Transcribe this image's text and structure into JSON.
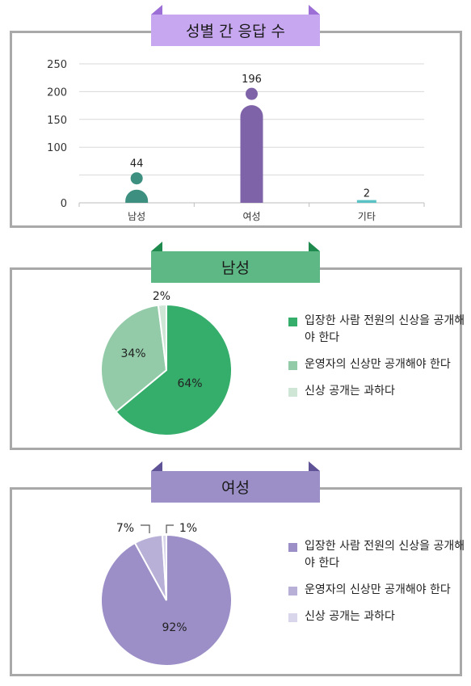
{
  "colors": {
    "banner_bar": "#c7a7ef",
    "banner_bar_dark": "#9b6fd6",
    "banner_male": "#5eb885",
    "banner_male_dark": "#1f8a4d",
    "banner_female": "#9c8fc7",
    "banner_female_dark": "#5f5296",
    "bar_male": "#3d8f80",
    "bar_female": "#7f63a8",
    "bar_other": "#58c2c4",
    "male_slices": [
      "#35ad6b",
      "#93cba8",
      "#cfe6d6"
    ],
    "female_slices": [
      "#9c8fc7",
      "#b9b0d8",
      "#d9d5ea"
    ]
  },
  "titles": {
    "bar": "성별 간 응답 수",
    "male": "남성",
    "female": "여성"
  },
  "legend": [
    "입장한 사람 전원의 신상을 공개해야 한다",
    "운영자의 신상만 공개해야 한다",
    "신상 공개는 과하다"
  ],
  "chart_data": [
    {
      "type": "bar",
      "title": "성별 간 응답 수",
      "categories": [
        "남성",
        "여성",
        "기타"
      ],
      "values": [
        44,
        196,
        2
      ],
      "data_labels": [
        "44",
        "196",
        "2"
      ],
      "ylim": [
        0,
        250
      ],
      "yticks": [
        0,
        50,
        100,
        150,
        200,
        250
      ],
      "ytick_labels": [
        "0",
        "",
        "100",
        "150",
        "200",
        "250"
      ],
      "grid": true
    },
    {
      "type": "pie",
      "title": "남성",
      "labels": [
        "입장한 사람 전원의 신상을 공개해야 한다",
        "운영자의 신상만 공개해야 한다",
        "신상 공개는 과하다"
      ],
      "values": [
        64,
        34,
        2
      ],
      "data_labels": [
        "64%",
        "34%",
        "2%"
      ]
    },
    {
      "type": "pie",
      "title": "여성",
      "labels": [
        "입장한 사람 전원의 신상을 공개해야 한다",
        "운영자의 신상만 공개해야 한다",
        "신상 공개는 과하다"
      ],
      "values": [
        92,
        7,
        1
      ],
      "data_labels": [
        "92%",
        "7%",
        "1%"
      ]
    }
  ]
}
